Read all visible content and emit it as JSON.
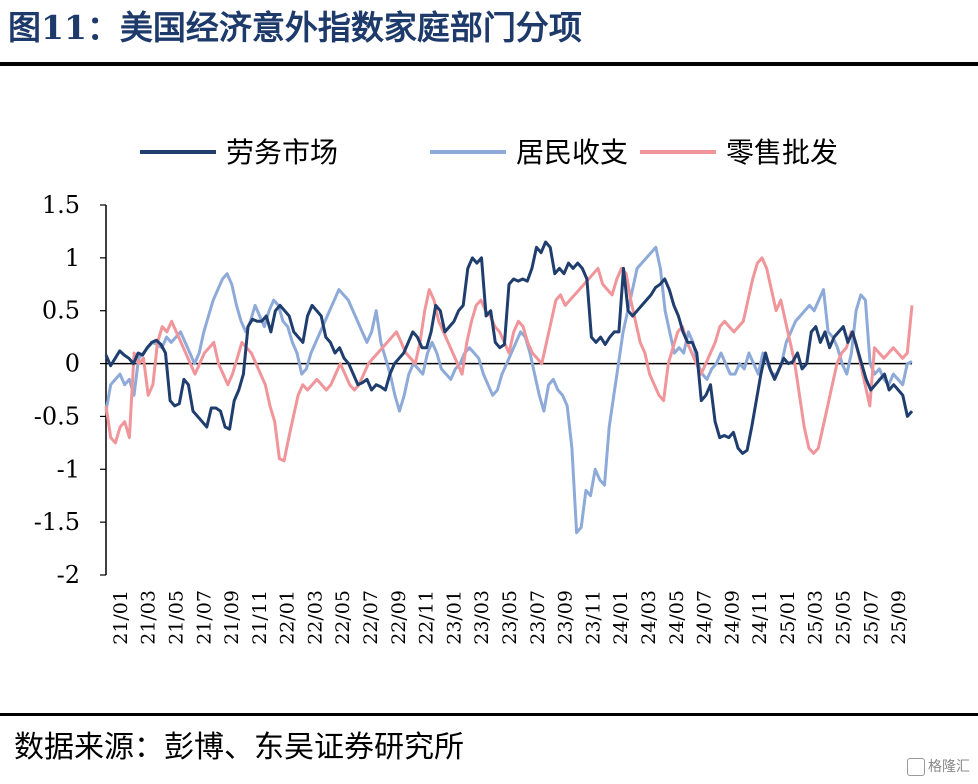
{
  "title": "图11：美国经济意外指数家庭部门分项",
  "source": "数据来源：彭博、东吴证券研究所",
  "watermark": "格隆汇",
  "colors": {
    "series1": "#1f3e6e",
    "series2": "#8eaad9",
    "series3": "#f0959a",
    "title": "#1e3a6b"
  },
  "chart_data": {
    "type": "line",
    "legend_position": "top",
    "grid": false,
    "ylim": [
      -2,
      1.5
    ],
    "yticks": [
      "1.5",
      "1",
      "0.5",
      "0",
      "-0.5",
      "-1",
      "-1.5",
      "-2"
    ],
    "xticks": [
      "21/01",
      "21/03",
      "21/05",
      "21/07",
      "21/09",
      "21/11",
      "22/01",
      "22/03",
      "22/05",
      "22/07",
      "22/09",
      "22/11",
      "23/01",
      "23/03",
      "23/05",
      "23/07",
      "23/09",
      "23/11",
      "24/01",
      "24/03",
      "24/05",
      "24/07",
      "24/09",
      "24/11",
      "25/01",
      "25/03",
      "25/05",
      "25/07",
      "25/09"
    ],
    "x_start": "2021-01",
    "x_step_weeks": 1,
    "series": [
      {
        "name": "劳务市场",
        "values": [
          0.08,
          -0.02,
          0.05,
          0.12,
          0.08,
          0.05,
          0.0,
          0.1,
          0.08,
          0.15,
          0.2,
          0.22,
          0.18,
          0.1,
          -0.35,
          -0.4,
          -0.38,
          -0.15,
          -0.2,
          -0.45,
          -0.5,
          -0.55,
          -0.6,
          -0.42,
          -0.42,
          -0.45,
          -0.6,
          -0.62,
          -0.35,
          -0.25,
          -0.1,
          0.35,
          0.42,
          0.4,
          0.4,
          0.45,
          0.3,
          0.5,
          0.55,
          0.5,
          0.45,
          0.3,
          0.25,
          0.2,
          0.45,
          0.55,
          0.5,
          0.45,
          0.25,
          0.2,
          0.1,
          0.15,
          0.05,
          0.0,
          -0.1,
          -0.2,
          -0.18,
          -0.15,
          -0.25,
          -0.2,
          -0.22,
          -0.25,
          -0.1,
          0.0,
          0.05,
          0.1,
          0.2,
          0.3,
          0.25,
          0.15,
          0.15,
          0.3,
          0.55,
          0.5,
          0.3,
          0.35,
          0.4,
          0.5,
          0.55,
          0.9,
          1.0,
          0.95,
          1.0,
          0.45,
          0.5,
          0.2,
          0.15,
          0.18,
          0.75,
          0.8,
          0.78,
          0.8,
          0.78,
          0.9,
          1.1,
          1.05,
          1.15,
          1.1,
          0.85,
          0.9,
          0.85,
          0.95,
          0.9,
          0.95,
          0.9,
          0.8,
          0.25,
          0.2,
          0.25,
          0.18,
          0.25,
          0.3,
          0.3,
          0.9,
          0.5,
          0.45,
          0.5,
          0.55,
          0.6,
          0.65,
          0.72,
          0.75,
          0.8,
          0.7,
          0.55,
          0.45,
          0.3,
          0.2,
          0.2,
          0.1,
          -0.35,
          -0.3,
          -0.2,
          -0.55,
          -0.7,
          -0.68,
          -0.7,
          -0.65,
          -0.8,
          -0.85,
          -0.82,
          -0.6,
          -0.35,
          -0.1,
          0.1,
          -0.05,
          -0.15,
          -0.05,
          0.05,
          0.0,
          0.02,
          0.1,
          -0.05,
          0.0,
          0.3,
          0.35,
          0.2,
          0.3,
          0.15,
          0.25,
          0.3,
          0.35,
          0.2,
          0.3,
          0.15,
          0.0,
          -0.15,
          -0.25,
          -0.2,
          -0.15,
          -0.1,
          -0.25,
          -0.2,
          -0.25,
          -0.3,
          -0.5,
          -0.45
        ]
      },
      {
        "name": "居民收支",
        "values": [
          -0.45,
          -0.2,
          -0.15,
          -0.1,
          -0.2,
          -0.15,
          -0.3,
          0.05,
          0.1,
          0.15,
          0.2,
          0.18,
          0.15,
          0.25,
          0.2,
          0.25,
          0.3,
          0.2,
          0.1,
          0.0,
          0.1,
          0.3,
          0.45,
          0.6,
          0.7,
          0.8,
          0.85,
          0.75,
          0.55,
          0.4,
          0.3,
          0.4,
          0.55,
          0.45,
          0.35,
          0.5,
          0.6,
          0.55,
          0.4,
          0.35,
          0.2,
          0.1,
          -0.1,
          -0.05,
          0.1,
          0.2,
          0.3,
          0.4,
          0.5,
          0.6,
          0.7,
          0.65,
          0.6,
          0.5,
          0.4,
          0.3,
          0.2,
          0.3,
          0.5,
          0.2,
          0.05,
          -0.1,
          -0.3,
          -0.45,
          -0.3,
          -0.1,
          0.0,
          -0.05,
          -0.1,
          0.1,
          0.2,
          0.1,
          -0.05,
          -0.1,
          -0.15,
          -0.05,
          0.0,
          0.1,
          0.15,
          0.1,
          0.05,
          -0.1,
          -0.2,
          -0.3,
          -0.25,
          -0.1,
          0.0,
          0.1,
          0.2,
          0.3,
          0.25,
          0.1,
          -0.1,
          -0.3,
          -0.45,
          -0.2,
          -0.15,
          -0.25,
          -0.3,
          -0.4,
          -0.8,
          -1.6,
          -1.55,
          -1.2,
          -1.25,
          -1.0,
          -1.1,
          -1.15,
          -0.6,
          -0.3,
          0.0,
          0.3,
          0.5,
          0.7,
          0.9,
          0.95,
          1.0,
          1.05,
          1.1,
          0.9,
          0.5,
          0.3,
          0.1,
          0.15,
          0.1,
          0.3,
          0.2,
          0.0,
          -0.1,
          -0.15,
          -0.05,
          0.0,
          0.1,
          0.0,
          -0.1,
          -0.1,
          0.0,
          -0.05,
          0.1,
          0.0,
          -0.1,
          0.1,
          0.0,
          -0.1,
          -0.1,
          0.0,
          0.2,
          0.3,
          0.4,
          0.45,
          0.5,
          0.55,
          0.5,
          0.6,
          0.7,
          0.3,
          0.25,
          0.15,
          0.0,
          -0.1,
          0.1,
          0.5,
          0.65,
          0.6,
          0.0,
          -0.1,
          -0.05,
          -0.15,
          -0.2,
          -0.1,
          -0.15,
          -0.2,
          0.0,
          0.02
        ]
      },
      {
        "name": "零售批发",
        "values": [
          -0.4,
          -0.7,
          -0.75,
          -0.6,
          -0.55,
          -0.7,
          0.1,
          0.0,
          0.05,
          -0.3,
          -0.2,
          0.2,
          0.35,
          0.3,
          0.4,
          0.3,
          0.2,
          0.1,
          0.0,
          -0.1,
          0.0,
          0.1,
          0.15,
          0.2,
          0.0,
          -0.1,
          -0.2,
          -0.1,
          0.05,
          0.2,
          0.15,
          0.1,
          0.0,
          -0.1,
          -0.2,
          -0.4,
          -0.55,
          -0.9,
          -0.92,
          -0.7,
          -0.5,
          -0.3,
          -0.2,
          -0.25,
          -0.2,
          -0.15,
          -0.2,
          -0.25,
          -0.2,
          -0.1,
          0.0,
          -0.1,
          -0.2,
          -0.25,
          -0.2,
          -0.1,
          0.0,
          0.05,
          0.1,
          0.15,
          0.2,
          0.25,
          0.3,
          0.2,
          0.1,
          0.05,
          0.0,
          0.2,
          0.5,
          0.7,
          0.6,
          0.4,
          0.3,
          0.2,
          0.1,
          0.0,
          -0.1,
          0.2,
          0.4,
          0.55,
          0.6,
          0.5,
          0.45,
          0.35,
          0.3,
          0.2,
          0.1,
          0.3,
          0.4,
          0.35,
          0.2,
          0.1,
          0.05,
          0.0,
          0.2,
          0.4,
          0.6,
          0.65,
          0.55,
          0.6,
          0.65,
          0.7,
          0.75,
          0.8,
          0.85,
          0.9,
          0.75,
          0.7,
          0.65,
          0.8,
          0.9,
          0.85,
          0.6,
          0.4,
          0.2,
          0.1,
          -0.1,
          -0.2,
          -0.3,
          -0.35,
          0.0,
          0.15,
          0.3,
          0.35,
          0.2,
          0.1,
          0.0,
          -0.1,
          0.0,
          0.1,
          0.2,
          0.35,
          0.4,
          0.35,
          0.3,
          0.35,
          0.4,
          0.6,
          0.8,
          0.95,
          1.0,
          0.9,
          0.7,
          0.5,
          0.6,
          0.4,
          0.2,
          0.0,
          -0.3,
          -0.6,
          -0.8,
          -0.85,
          -0.8,
          -0.6,
          -0.4,
          -0.2,
          0.0,
          0.1,
          0.15,
          0.3,
          0.2,
          0.0,
          -0.2,
          -0.4,
          0.15,
          0.1,
          0.05,
          0.1,
          0.15,
          0.1,
          0.05,
          0.1,
          0.55
        ]
      }
    ]
  }
}
